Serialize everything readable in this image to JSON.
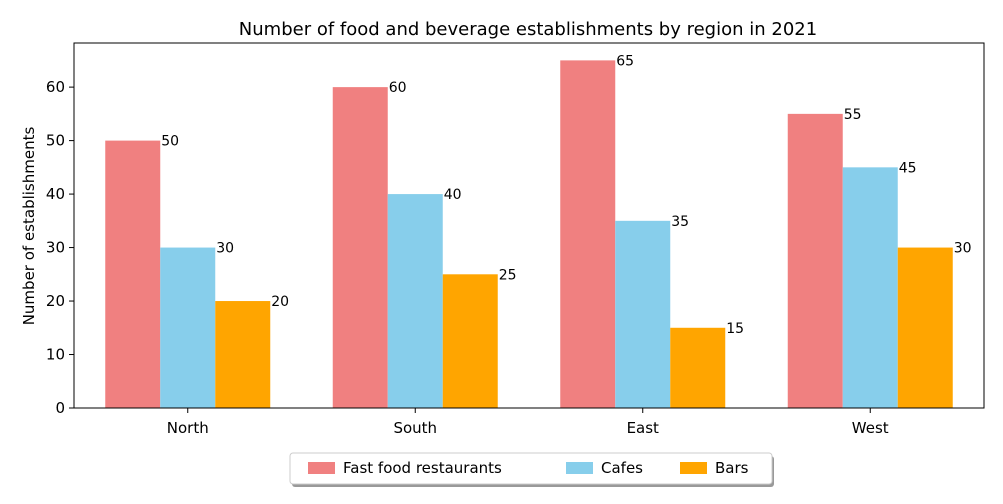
{
  "chart_data": {
    "type": "bar",
    "title": "Number of food and beverage establishments by region in 2021",
    "xlabel": "",
    "ylabel": "Number of establishments",
    "categories": [
      "North",
      "South",
      "East",
      "West"
    ],
    "series": [
      {
        "name": "Fast food restaurants",
        "values": [
          50,
          60,
          65,
          55
        ],
        "color": "#f08080"
      },
      {
        "name": "Cafes",
        "values": [
          30,
          40,
          35,
          45
        ],
        "color": "#87ceeb"
      },
      {
        "name": "Bars",
        "values": [
          20,
          25,
          15,
          30
        ],
        "color": "#ffa500"
      }
    ],
    "ylim": [
      0,
      68.25
    ],
    "yticks": [
      0,
      10,
      20,
      30,
      40,
      50,
      60
    ],
    "legend_position": "bottom-center",
    "grid": false
  }
}
